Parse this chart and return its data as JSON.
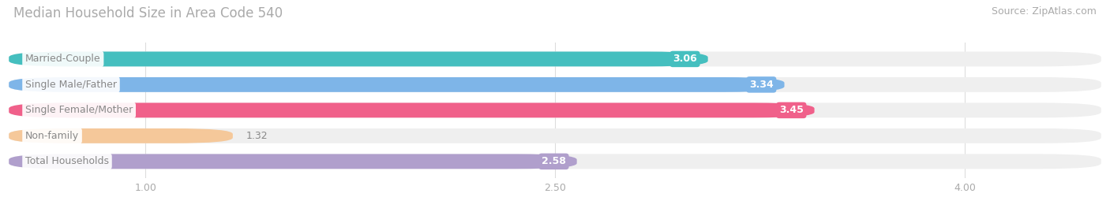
{
  "title": "Median Household Size in Area Code 540",
  "source": "Source: ZipAtlas.com",
  "categories": [
    "Married-Couple",
    "Single Male/Father",
    "Single Female/Mother",
    "Non-family",
    "Total Households"
  ],
  "values": [
    3.06,
    3.34,
    3.45,
    1.32,
    2.58
  ],
  "bar_colors": [
    "#45BFBF",
    "#7EB5E8",
    "#F0608A",
    "#F5C89A",
    "#B09FCC"
  ],
  "bar_background_color": "#EFEFEF",
  "xlim_data": [
    0.5,
    4.5
  ],
  "xmin": 0.5,
  "xmax": 4.5,
  "xticks": [
    1.0,
    2.5,
    4.0
  ],
  "xtick_labels": [
    "1.00",
    "2.50",
    "4.00"
  ],
  "title_fontsize": 12,
  "source_fontsize": 9,
  "label_fontsize": 9,
  "value_fontsize": 9,
  "tick_fontsize": 9,
  "background_color": "#FFFFFF",
  "bar_height": 0.58,
  "label_bg_color": "#FFFFFF",
  "label_text_color": "#888888",
  "value_text_color_inside": "#FFFFFF",
  "value_text_color_outside": "#888888",
  "grid_color": "#DDDDDD",
  "title_color": "#AAAAAA",
  "source_color": "#AAAAAA"
}
